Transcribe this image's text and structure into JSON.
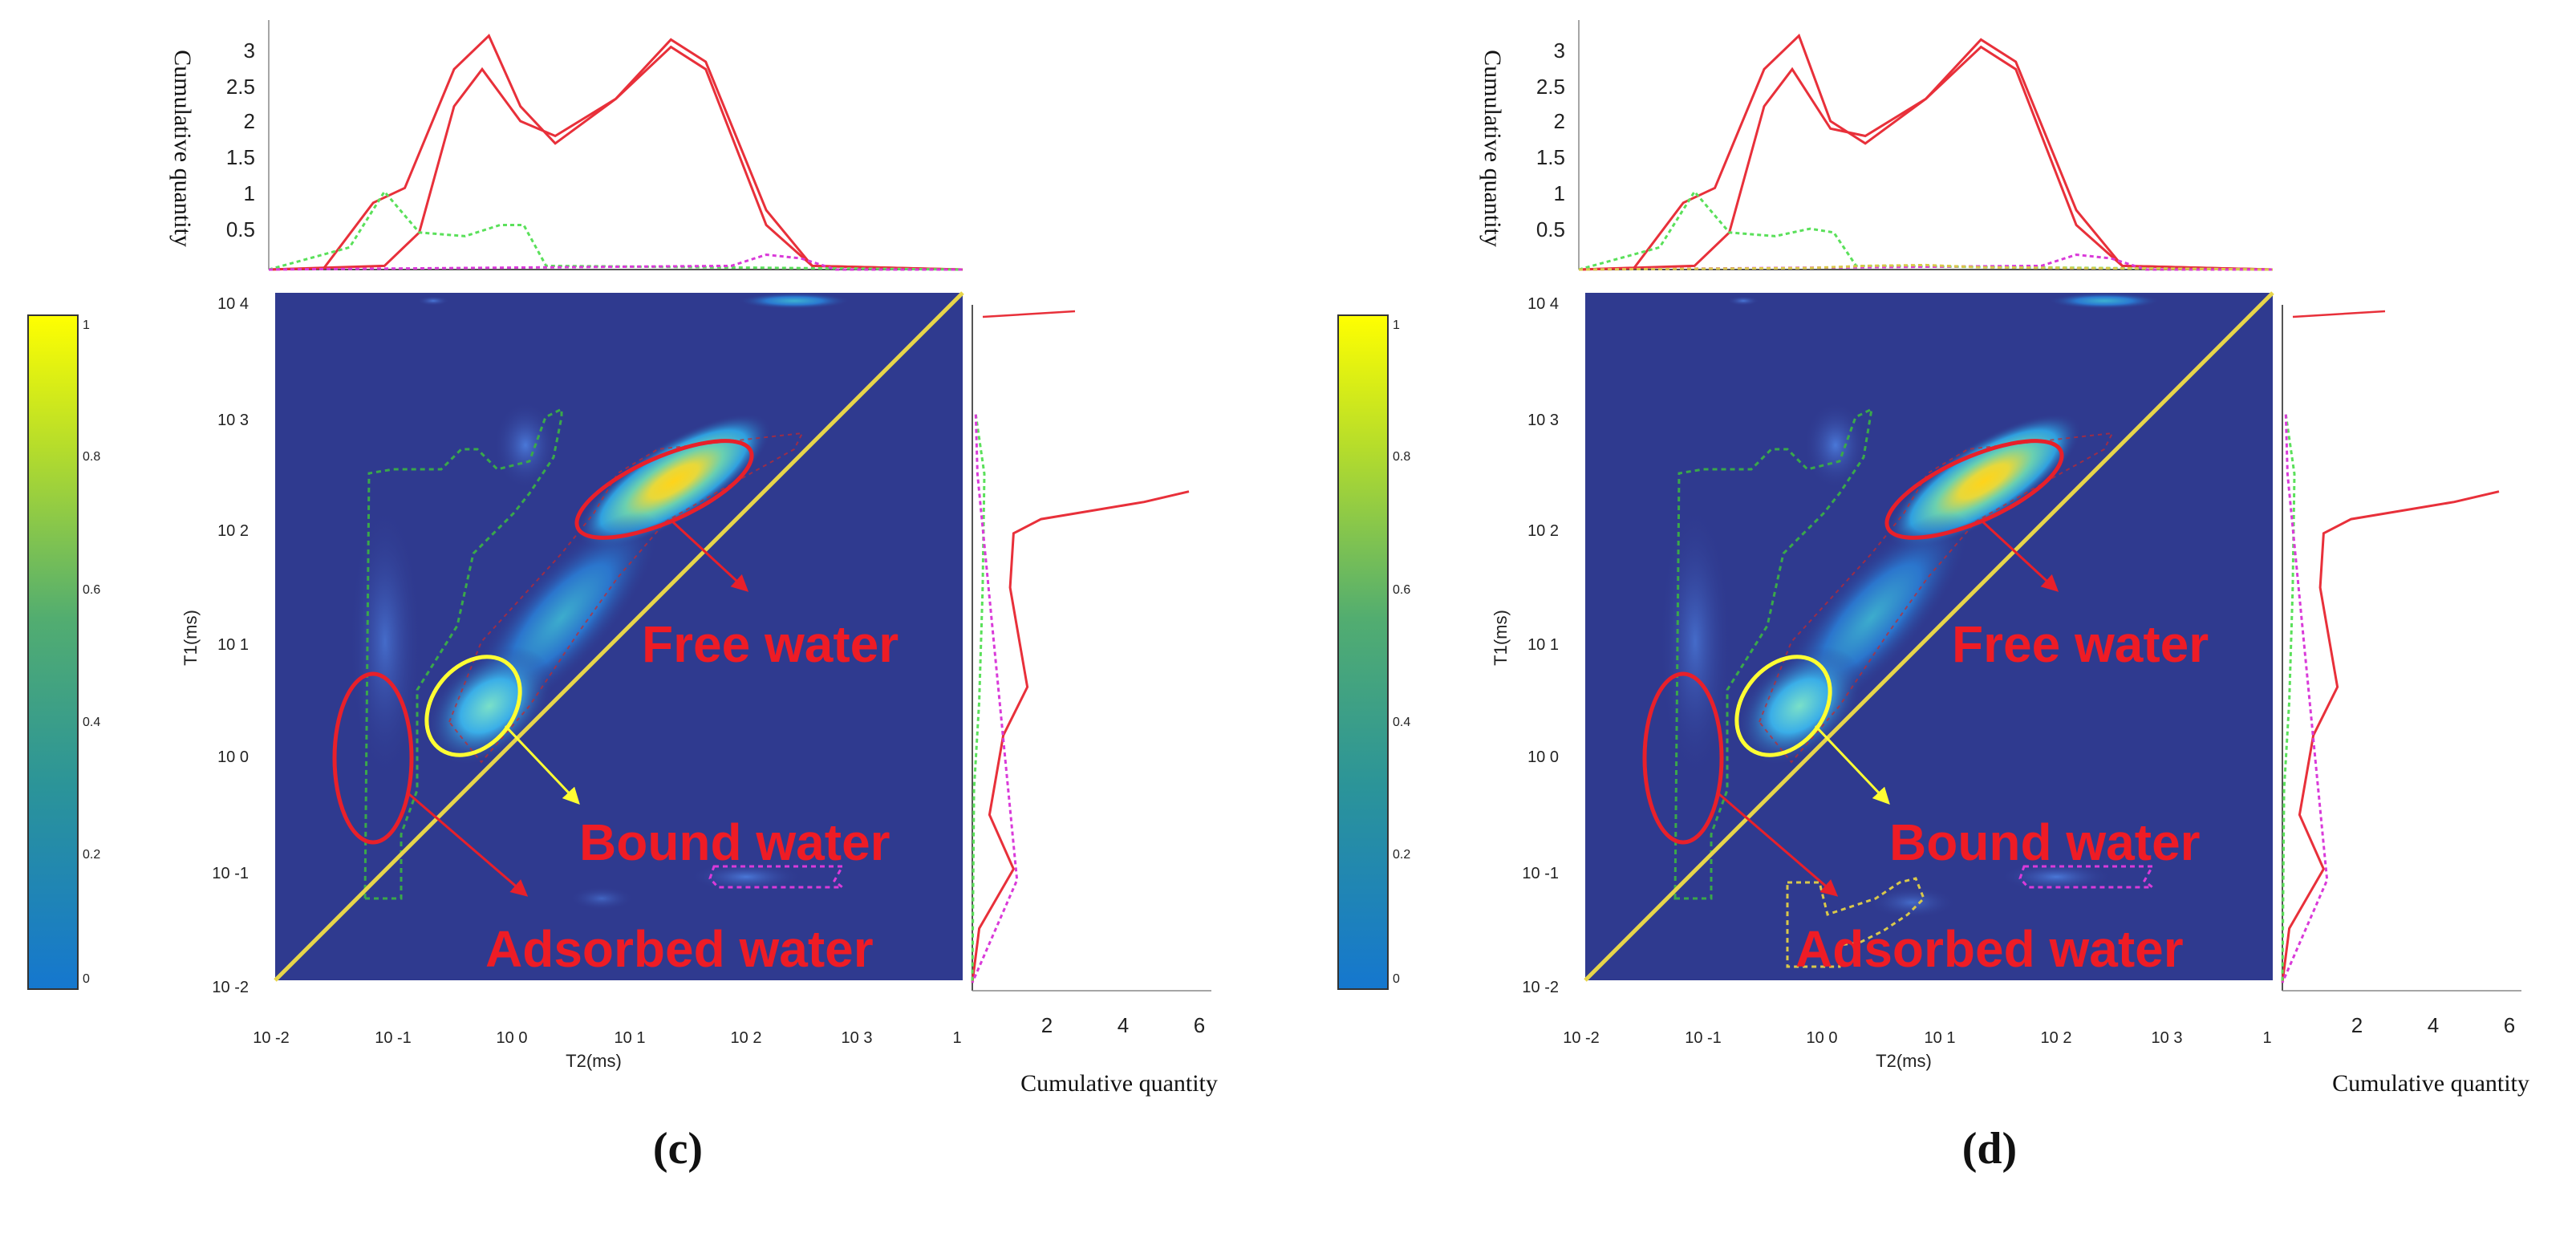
{
  "figure": {
    "panels": [
      {
        "id": "c",
        "caption": "(c)",
        "top_axis_label": "Cumulative quantity",
        "right_axis_label": "Cumulative quantity",
        "x_axis_label": "T2(ms)",
        "y_axis_label": "T1(ms)",
        "annotations": [
          "Free water",
          "Bound water",
          "Adsorbed water"
        ]
      },
      {
        "id": "d",
        "caption": "(d)",
        "top_axis_label": "Cumulative quantity",
        "right_axis_label": "Cumulative quantity",
        "x_axis_label": "T2(ms)",
        "y_axis_label": "T1(ms)",
        "annotations": [
          "Free water",
          "Bound water",
          "Adsorbed water"
        ]
      }
    ],
    "colors": {
      "map_background": "#2f3a8f",
      "diagonal": "#e7d54a",
      "free_water": "#e8202a",
      "bound_water": "#ffff33",
      "annotation_text": "#ee1c25",
      "green_dashed": "#3aa84a",
      "magenta_dashed": "#d93ad9",
      "yellow_dashed": "#d9c84a",
      "top_red": "#e8303a",
      "top_green": "#5ae05a",
      "top_magenta": "#d93ad9",
      "colorbar_top": "#ffff00",
      "colorbar_mid": "#3d9c8c",
      "colorbar_bottom": "#1577cf"
    }
  },
  "chart_data": [
    {
      "type": "heatmap",
      "panel": "c",
      "xlabel": "T2(ms)",
      "ylabel": "T1(ms)",
      "x_scale": "log",
      "y_scale": "log",
      "xlim": [
        0.01,
        10000
      ],
      "ylim": [
        0.01,
        10000
      ],
      "x_ticks": [
        "10 -2",
        "10 -1",
        "10 0",
        "10 1",
        "10 2",
        "10 3",
        "1"
      ],
      "y_ticks": [
        "10 4",
        "10 3",
        "10 2",
        "10 1",
        "10 0",
        "10 -1",
        "10 -2"
      ],
      "colorbar": {
        "range": [
          0,
          1
        ],
        "ticks": [
          "1",
          "0.8",
          "0.6",
          "0.4",
          "0.2",
          "0"
        ]
      },
      "top_projection": {
        "ylabel": "Cumulative quantity",
        "y_ticks": [
          "3",
          "2.5",
          "2",
          "1.5",
          "1",
          "0.5"
        ],
        "ylim": [
          0,
          3.2
        ],
        "series": [
          {
            "color": "red",
            "points": [
              [
                0.01,
                0
              ],
              [
                0.03,
                0.02
              ],
              [
                0.08,
                0.9
              ],
              [
                0.15,
                1.1
              ],
              [
                0.4,
                2.7
              ],
              [
                0.8,
                3.15
              ],
              [
                1.5,
                2.2
              ],
              [
                3,
                1.7
              ],
              [
                10,
                2.3
              ],
              [
                30,
                3.1
              ],
              [
                60,
                2.8
              ],
              [
                200,
                0.8
              ],
              [
                500,
                0.05
              ],
              [
                10000,
                0
              ]
            ]
          },
          {
            "color": "red",
            "points": [
              [
                0.01,
                0
              ],
              [
                0.1,
                0.05
              ],
              [
                0.2,
                0.5
              ],
              [
                0.4,
                2.2
              ],
              [
                0.7,
                2.7
              ],
              [
                1.5,
                2.0
              ],
              [
                3,
                1.8
              ],
              [
                10,
                2.3
              ],
              [
                30,
                3.0
              ],
              [
                60,
                2.7
              ],
              [
                200,
                0.6
              ],
              [
                500,
                0.05
              ],
              [
                10000,
                0
              ]
            ]
          },
          {
            "color": "green",
            "points": [
              [
                0.01,
                0
              ],
              [
                0.05,
                0.3
              ],
              [
                0.1,
                1.05
              ],
              [
                0.2,
                0.5
              ],
              [
                0.5,
                0.45
              ],
              [
                1,
                0.6
              ],
              [
                1.6,
                0.6
              ],
              [
                2.5,
                0.05
              ],
              [
                10000,
                0
              ]
            ]
          },
          {
            "color": "magenta",
            "points": [
              [
                0.01,
                0
              ],
              [
                100,
                0.05
              ],
              [
                200,
                0.2
              ],
              [
                400,
                0.15
              ],
              [
                800,
                0
              ],
              [
                10000,
                0
              ]
            ]
          }
        ]
      },
      "right_projection": {
        "xlabel": "Cumulative quantity",
        "x_ticks": [
          "2",
          "4",
          "6"
        ],
        "xlim": [
          0,
          7
        ],
        "series": [
          {
            "color": "red",
            "points": [
              [
                6.3,
                210
              ],
              [
                5.0,
                170
              ],
              [
                2.0,
                120
              ],
              [
                1.2,
                90
              ],
              [
                1.1,
                30
              ],
              [
                1.6,
                4
              ],
              [
                0.9,
                1.5
              ],
              [
                0.5,
                0.3
              ],
              [
                1.2,
                0.1
              ],
              [
                0.2,
                0.03
              ],
              [
                0,
                0.01
              ]
            ]
          },
          {
            "color": "green",
            "points": [
              [
                0.1,
                1000
              ],
              [
                0.35,
                300
              ],
              [
                0.3,
                30
              ],
              [
                0.2,
                3
              ],
              [
                0.05,
                0.5
              ],
              [
                0,
                0.01
              ]
            ]
          },
          {
            "color": "magenta",
            "points": [
              [
                0.1,
                1000
              ],
              [
                0.15,
                300
              ],
              [
                1.3,
                0.08
              ],
              [
                0,
                0.01
              ]
            ]
          }
        ]
      },
      "regions": [
        {
          "label": "Free water",
          "t2": [
            30,
            600
          ],
          "t1": [
            100,
            700
          ],
          "color": "red"
        },
        {
          "label": "Bound water",
          "t2": [
            0.3,
            3
          ],
          "t1": [
            0.7,
            10
          ],
          "color": "yellow"
        },
        {
          "label": "Adsorbed water",
          "t2": [
            0.03,
            0.1
          ],
          "t1": [
            0.1,
            3
          ],
          "color": "red"
        }
      ]
    },
    {
      "type": "heatmap",
      "panel": "d",
      "xlabel": "T2(ms)",
      "ylabel": "T1(ms)",
      "x_scale": "log",
      "y_scale": "log",
      "xlim": [
        0.01,
        10000
      ],
      "ylim": [
        0.01,
        10000
      ],
      "x_ticks": [
        "10 -2",
        "10 -1",
        "10 0",
        "10 1",
        "10 2",
        "10 3",
        "1"
      ],
      "y_ticks": [
        "10 4",
        "10 3",
        "10 2",
        "10 1",
        "10 0",
        "10 -1",
        "10 -2"
      ],
      "colorbar": {
        "range": [
          0,
          1
        ],
        "ticks": [
          "1",
          "0.8",
          "0.6",
          "0.4",
          "0.2",
          "0"
        ]
      },
      "top_projection": {
        "ylabel": "Cumulative quantity",
        "y_ticks": [
          "3",
          "2.5",
          "2",
          "1.5",
          "1",
          "0.5"
        ],
        "ylim": [
          0,
          3.2
        ],
        "series": [
          {
            "color": "red",
            "points": [
              [
                0.01,
                0
              ],
              [
                0.03,
                0.02
              ],
              [
                0.08,
                0.9
              ],
              [
                0.15,
                1.1
              ],
              [
                0.4,
                2.7
              ],
              [
                0.8,
                3.15
              ],
              [
                1.5,
                2.0
              ],
              [
                3,
                1.7
              ],
              [
                10,
                2.3
              ],
              [
                30,
                3.1
              ],
              [
                60,
                2.8
              ],
              [
                200,
                0.8
              ],
              [
                500,
                0.05
              ],
              [
                10000,
                0
              ]
            ]
          },
          {
            "color": "red",
            "points": [
              [
                0.01,
                0
              ],
              [
                0.1,
                0.05
              ],
              [
                0.2,
                0.5
              ],
              [
                0.4,
                2.2
              ],
              [
                0.7,
                2.7
              ],
              [
                1.5,
                1.9
              ],
              [
                3,
                1.8
              ],
              [
                10,
                2.3
              ],
              [
                30,
                3.0
              ],
              [
                60,
                2.7
              ],
              [
                200,
                0.6
              ],
              [
                500,
                0.05
              ],
              [
                10000,
                0
              ]
            ]
          },
          {
            "color": "green",
            "points": [
              [
                0.01,
                0
              ],
              [
                0.05,
                0.3
              ],
              [
                0.1,
                1.05
              ],
              [
                0.2,
                0.5
              ],
              [
                0.5,
                0.45
              ],
              [
                1,
                0.55
              ],
              [
                1.6,
                0.5
              ],
              [
                2.5,
                0.05
              ],
              [
                10000,
                0
              ]
            ]
          },
          {
            "color": "magenta",
            "points": [
              [
                0.01,
                0
              ],
              [
                100,
                0.05
              ],
              [
                200,
                0.2
              ],
              [
                400,
                0.15
              ],
              [
                800,
                0
              ],
              [
                10000,
                0
              ]
            ]
          },
          {
            "color": "yellow",
            "points": [
              [
                0.01,
                0
              ],
              [
                1,
                0.02
              ],
              [
                3,
                0.05
              ],
              [
                10,
                0.06
              ],
              [
                30,
                0.03
              ],
              [
                10000,
                0
              ]
            ]
          }
        ]
      },
      "right_projection": {
        "xlabel": "Cumulative quantity",
        "x_ticks": [
          "2",
          "4",
          "6"
        ],
        "xlim": [
          0,
          7
        ],
        "series": [
          {
            "color": "red",
            "points": [
              [
                6.3,
                210
              ],
              [
                5.0,
                170
              ],
              [
                2.0,
                120
              ],
              [
                1.2,
                90
              ],
              [
                1.1,
                30
              ],
              [
                1.6,
                4
              ],
              [
                0.9,
                1.5
              ],
              [
                0.5,
                0.3
              ],
              [
                1.2,
                0.1
              ],
              [
                0.2,
                0.03
              ],
              [
                0,
                0.01
              ]
            ]
          },
          {
            "color": "green",
            "points": [
              [
                0.1,
                1000
              ],
              [
                0.35,
                300
              ],
              [
                0.3,
                30
              ],
              [
                0.2,
                3
              ],
              [
                0.05,
                0.5
              ],
              [
                0,
                0.01
              ]
            ]
          },
          {
            "color": "magenta",
            "points": [
              [
                0.1,
                1000
              ],
              [
                0.15,
                300
              ],
              [
                1.3,
                0.08
              ],
              [
                0,
                0.01
              ]
            ]
          }
        ]
      },
      "regions": [
        {
          "label": "Free water",
          "t2": [
            30,
            600
          ],
          "t1": [
            100,
            700
          ],
          "color": "red"
        },
        {
          "label": "Bound water",
          "t2": [
            0.3,
            3
          ],
          "t1": [
            0.7,
            10
          ],
          "color": "yellow"
        },
        {
          "label": "Adsorbed water",
          "t2": [
            0.03,
            0.1
          ],
          "t1": [
            0.1,
            3
          ],
          "color": "red"
        }
      ]
    }
  ]
}
